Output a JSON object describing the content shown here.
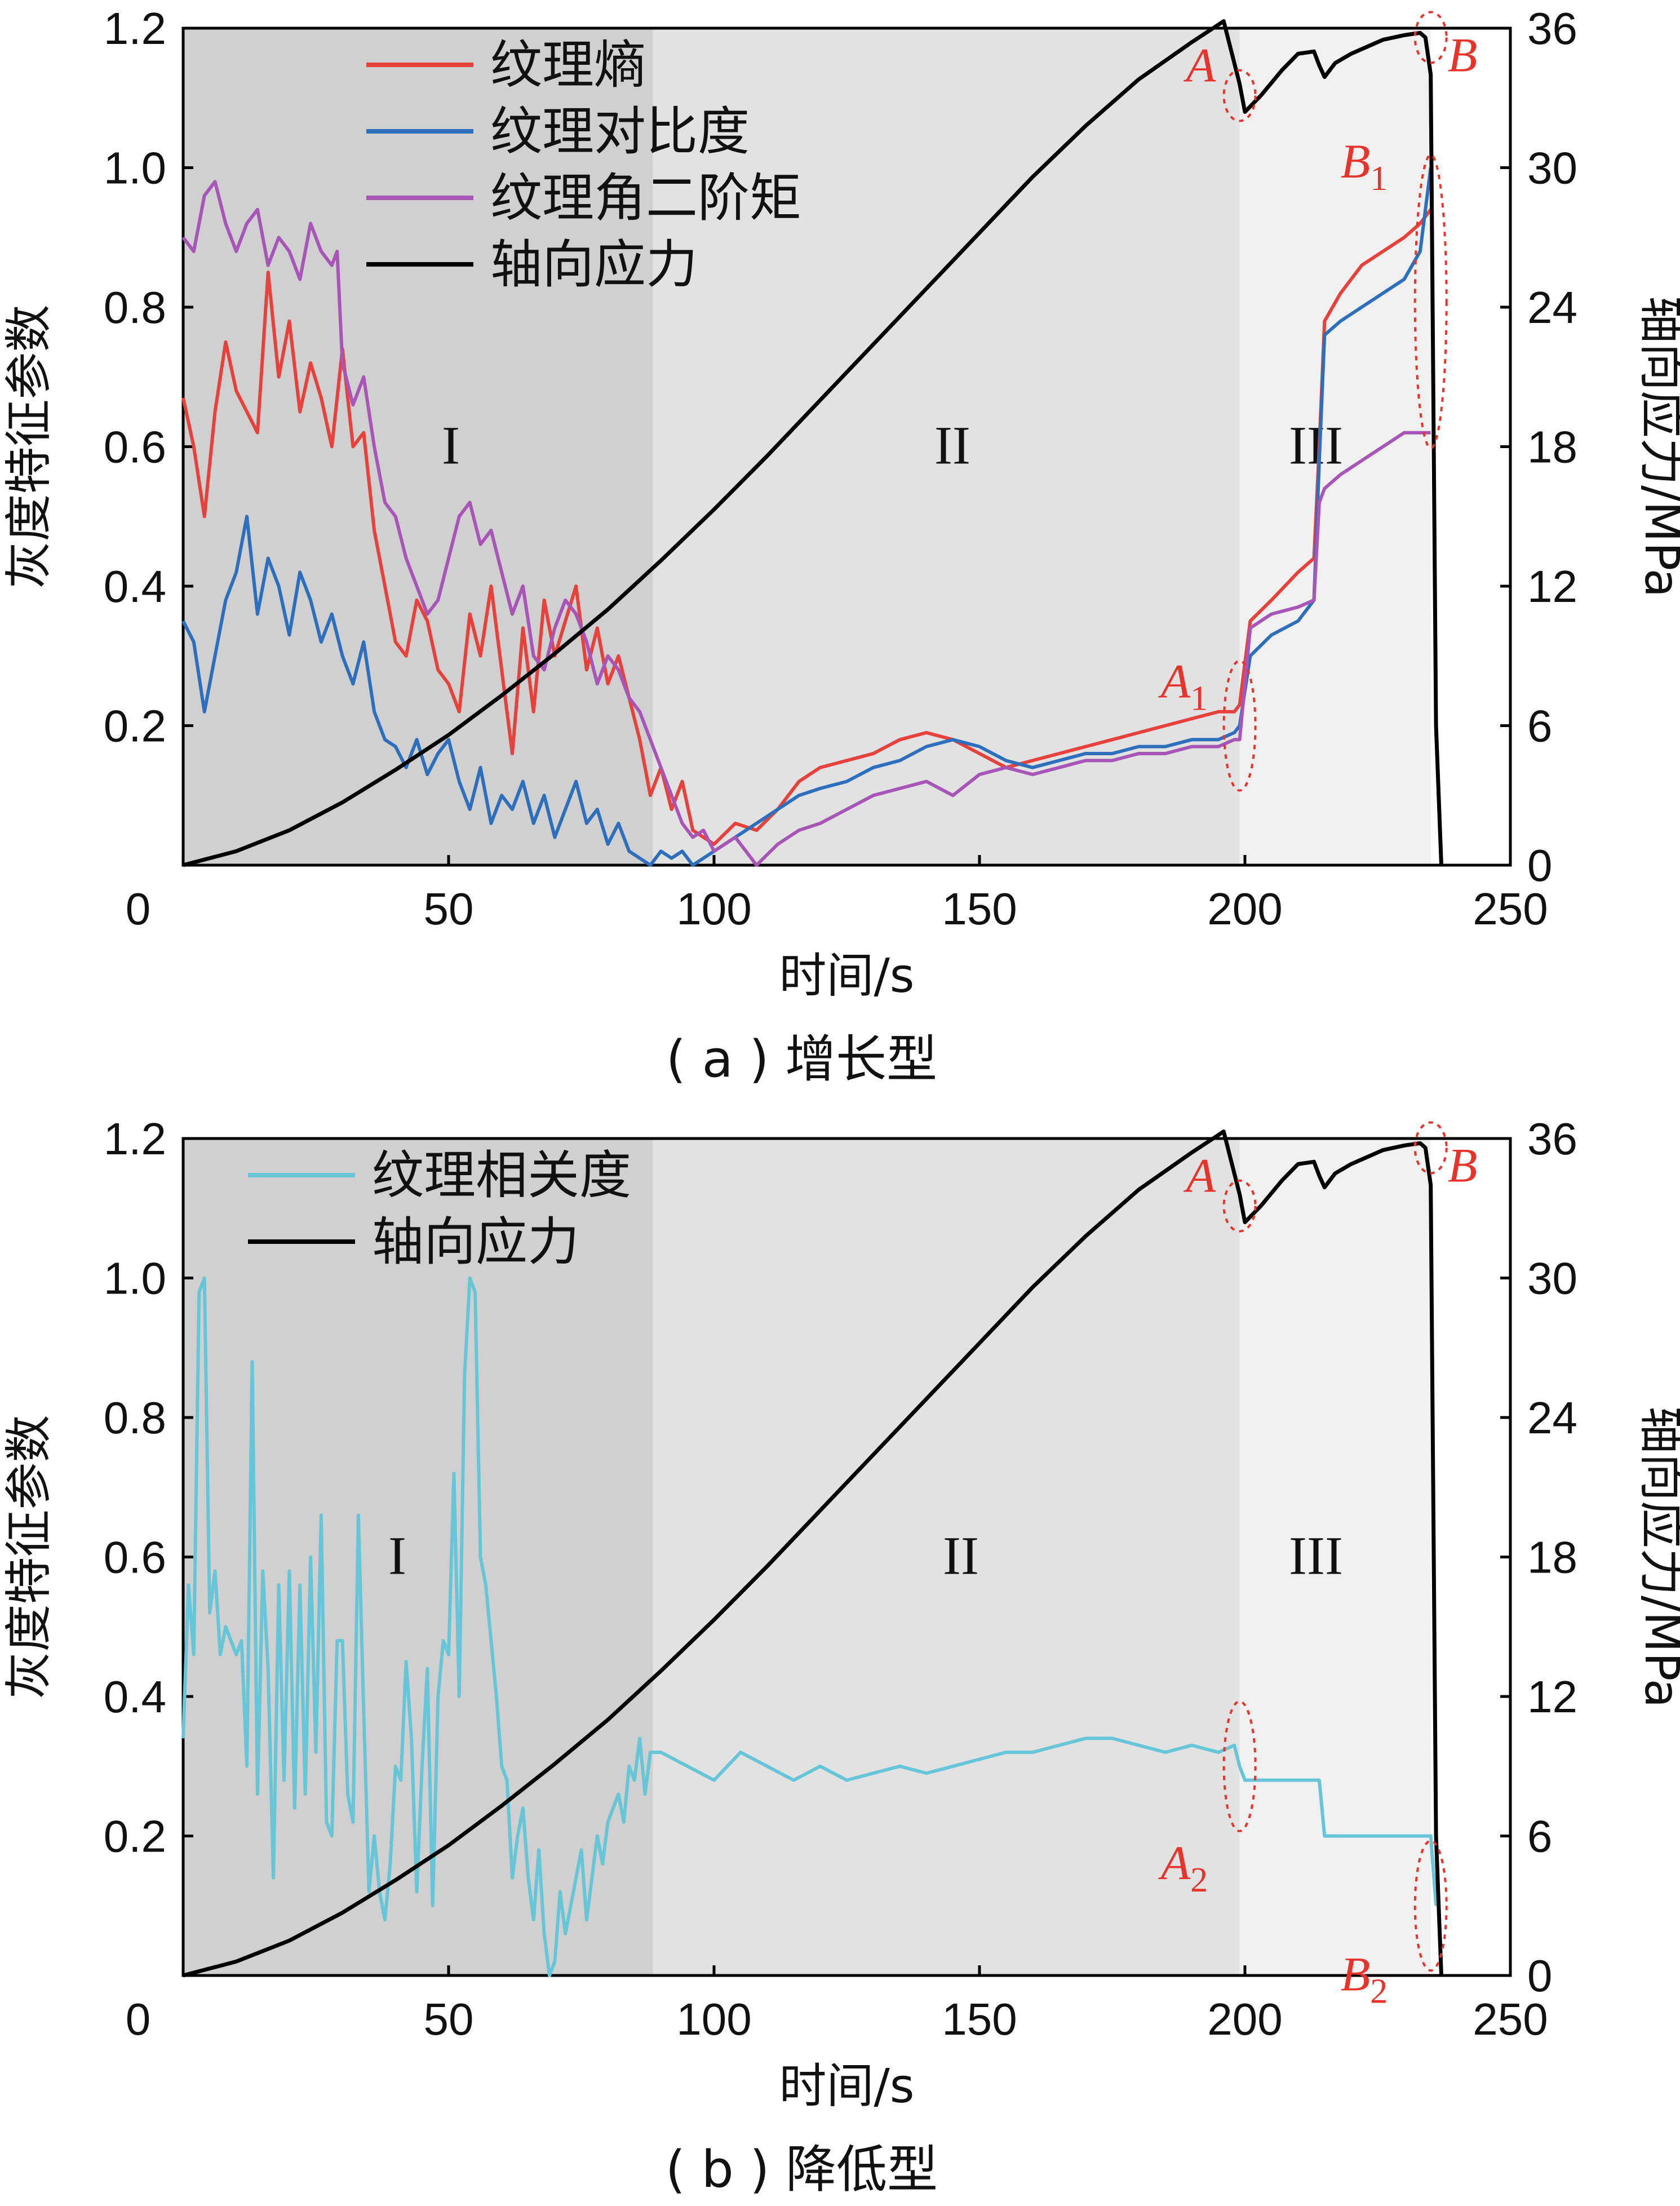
{
  "colors": {
    "entropy": "#e8403a",
    "contrast": "#2e6fbd",
    "asm": "#a855b8",
    "stress": "#000000",
    "correlation": "#66c6d8",
    "annotation": "#e8332a",
    "stage1_bg": "#d0d0d0",
    "stage2_bg": "#e2e2e2",
    "stage3_bg": "#f0f0f0"
  },
  "chart_data": [
    {
      "type": "line",
      "caption": "( a ) 增长型",
      "xlabel": "时间/s",
      "ylabel": "灰度特征参数",
      "y2label": "轴向应力/MPa",
      "xlim": [
        0,
        250
      ],
      "ylim": [
        0,
        1.2
      ],
      "y2lim": [
        0,
        36
      ],
      "xticks": [
        "0",
        "50",
        "100",
        "150",
        "200",
        "250"
      ],
      "yticks": [
        "0.2",
        "0.4",
        "0.6",
        "0.8",
        "1.0",
        "1.2"
      ],
      "y2ticks": [
        "0",
        "6",
        "12",
        "18",
        "24",
        "30",
        "36"
      ],
      "stages": [
        {
          "label": "I",
          "from": 0,
          "to": 88.5
        },
        {
          "label": "II",
          "from": 88.5,
          "to": 199
        },
        {
          "label": "III",
          "from": 199,
          "to": 235
        }
      ],
      "annotations": [
        {
          "text": "A",
          "sub": "",
          "x": 199,
          "y_stress": 33.1
        },
        {
          "text": "B",
          "sub": "",
          "x": 235,
          "y_stress": 35.6
        },
        {
          "text": "A",
          "sub": "1",
          "x": 199,
          "y": 0.2
        },
        {
          "text": "B",
          "sub": "1",
          "x": 235,
          "y": 0.8
        }
      ],
      "series": [
        {
          "name": "纹理熵",
          "key": "entropy",
          "axis": "left",
          "x": [
            0,
            2,
            4,
            6,
            8,
            10,
            12,
            14,
            16,
            18,
            20,
            22,
            24,
            26,
            28,
            30,
            32,
            34,
            36,
            38,
            40,
            42,
            44,
            46,
            48,
            50,
            52,
            54,
            56,
            58,
            60,
            62,
            64,
            66,
            68,
            70,
            72,
            74,
            76,
            78,
            80,
            82,
            84,
            86,
            88,
            90,
            92,
            94,
            96,
            98,
            100,
            104,
            108,
            112,
            116,
            120,
            125,
            130,
            135,
            140,
            145,
            150,
            155,
            160,
            165,
            170,
            175,
            180,
            185,
            190,
            195,
            198,
            199,
            201,
            205,
            210,
            213,
            214,
            215,
            218,
            222,
            226,
            230,
            233,
            235
          ],
          "y": [
            0.67,
            0.6,
            0.5,
            0.65,
            0.75,
            0.68,
            0.65,
            0.62,
            0.85,
            0.7,
            0.78,
            0.65,
            0.72,
            0.67,
            0.6,
            0.74,
            0.6,
            0.62,
            0.48,
            0.4,
            0.32,
            0.3,
            0.38,
            0.35,
            0.28,
            0.26,
            0.22,
            0.36,
            0.3,
            0.4,
            0.28,
            0.16,
            0.34,
            0.22,
            0.38,
            0.3,
            0.35,
            0.4,
            0.28,
            0.34,
            0.26,
            0.3,
            0.24,
            0.18,
            0.1,
            0.14,
            0.08,
            0.12,
            0.05,
            0.04,
            0.03,
            0.06,
            0.05,
            0.08,
            0.12,
            0.14,
            0.15,
            0.16,
            0.18,
            0.19,
            0.18,
            0.16,
            0.14,
            0.15,
            0.16,
            0.17,
            0.18,
            0.19,
            0.2,
            0.21,
            0.22,
            0.22,
            0.23,
            0.35,
            0.38,
            0.42,
            0.44,
            0.6,
            0.78,
            0.82,
            0.86,
            0.88,
            0.9,
            0.92,
            0.94
          ]
        },
        {
          "name": "纹理对比度",
          "key": "contrast",
          "axis": "left",
          "x": [
            0,
            2,
            4,
            6,
            8,
            10,
            12,
            14,
            16,
            18,
            20,
            22,
            24,
            26,
            28,
            30,
            32,
            34,
            36,
            38,
            40,
            42,
            44,
            46,
            48,
            50,
            52,
            54,
            56,
            58,
            60,
            62,
            64,
            66,
            68,
            70,
            72,
            74,
            76,
            78,
            80,
            82,
            84,
            86,
            88,
            90,
            92,
            94,
            96,
            98,
            100,
            104,
            108,
            112,
            116,
            120,
            125,
            130,
            135,
            140,
            145,
            150,
            155,
            160,
            165,
            170,
            175,
            180,
            185,
            190,
            195,
            198,
            199,
            201,
            205,
            210,
            213,
            214,
            215,
            218,
            222,
            226,
            230,
            233,
            235
          ],
          "y": [
            0.35,
            0.32,
            0.22,
            0.3,
            0.38,
            0.42,
            0.5,
            0.36,
            0.44,
            0.4,
            0.33,
            0.42,
            0.38,
            0.32,
            0.36,
            0.3,
            0.26,
            0.32,
            0.22,
            0.18,
            0.17,
            0.14,
            0.18,
            0.13,
            0.16,
            0.18,
            0.12,
            0.08,
            0.14,
            0.06,
            0.1,
            0.08,
            0.12,
            0.06,
            0.1,
            0.04,
            0.08,
            0.12,
            0.06,
            0.08,
            0.03,
            0.06,
            0.02,
            0.01,
            0.0,
            0.02,
            0.01,
            0.02,
            0.0,
            0.01,
            0.02,
            0.04,
            0.06,
            0.08,
            0.1,
            0.11,
            0.12,
            0.14,
            0.15,
            0.17,
            0.18,
            0.17,
            0.15,
            0.14,
            0.15,
            0.16,
            0.16,
            0.17,
            0.17,
            0.18,
            0.18,
            0.19,
            0.2,
            0.3,
            0.33,
            0.35,
            0.38,
            0.58,
            0.76,
            0.78,
            0.8,
            0.82,
            0.84,
            0.88,
            1.0
          ]
        },
        {
          "name": "纹理角二阶矩",
          "key": "asm",
          "axis": "left",
          "x": [
            0,
            2,
            4,
            6,
            8,
            10,
            12,
            14,
            16,
            18,
            20,
            22,
            24,
            26,
            28,
            29,
            30,
            32,
            34,
            36,
            38,
            40,
            42,
            44,
            46,
            48,
            50,
            52,
            54,
            56,
            58,
            60,
            62,
            64,
            66,
            68,
            70,
            72,
            74,
            76,
            78,
            80,
            82,
            84,
            86,
            88,
            90,
            92,
            94,
            96,
            98,
            100,
            104,
            108,
            112,
            116,
            120,
            125,
            130,
            135,
            140,
            145,
            150,
            155,
            160,
            165,
            170,
            175,
            180,
            185,
            190,
            195,
            198,
            199,
            201,
            205,
            210,
            213,
            214,
            215,
            218,
            222,
            226,
            230,
            233,
            235
          ],
          "y": [
            0.9,
            0.88,
            0.96,
            0.98,
            0.92,
            0.88,
            0.92,
            0.94,
            0.86,
            0.9,
            0.88,
            0.84,
            0.92,
            0.88,
            0.86,
            0.88,
            0.72,
            0.66,
            0.7,
            0.6,
            0.52,
            0.5,
            0.44,
            0.4,
            0.36,
            0.38,
            0.44,
            0.5,
            0.52,
            0.46,
            0.48,
            0.42,
            0.36,
            0.4,
            0.3,
            0.28,
            0.34,
            0.38,
            0.36,
            0.32,
            0.26,
            0.3,
            0.28,
            0.24,
            0.22,
            0.18,
            0.14,
            0.1,
            0.06,
            0.04,
            0.05,
            0.02,
            0.04,
            0.0,
            0.03,
            0.05,
            0.06,
            0.08,
            0.1,
            0.11,
            0.12,
            0.1,
            0.13,
            0.14,
            0.13,
            0.14,
            0.15,
            0.15,
            0.16,
            0.16,
            0.17,
            0.17,
            0.18,
            0.18,
            0.34,
            0.36,
            0.37,
            0.38,
            0.52,
            0.54,
            0.56,
            0.58,
            0.6,
            0.62,
            0.62,
            0.62
          ]
        },
        {
          "name": "轴向应力",
          "key": "stress",
          "axis": "right",
          "x": [
            0,
            10,
            20,
            30,
            40,
            50,
            60,
            70,
            80,
            90,
            100,
            110,
            120,
            130,
            140,
            150,
            160,
            170,
            180,
            190,
            196,
            199,
            200,
            203,
            207,
            210,
            213,
            214,
            215,
            217,
            220,
            223,
            226,
            230,
            233,
            234,
            235,
            235.5,
            236,
            237
          ],
          "y": [
            0,
            0.6,
            1.5,
            2.7,
            4.1,
            5.6,
            7.3,
            9.1,
            11.0,
            13.1,
            15.3,
            17.6,
            20.0,
            22.4,
            24.8,
            27.2,
            29.6,
            31.8,
            33.8,
            35.4,
            36.3,
            33.6,
            32.4,
            33.1,
            34.2,
            34.9,
            35.0,
            34.4,
            33.9,
            34.5,
            34.9,
            35.2,
            35.5,
            35.7,
            35.8,
            35.6,
            34.0,
            20.0,
            6.0,
            0.0
          ]
        }
      ]
    },
    {
      "type": "line",
      "caption": "( b ) 降低型",
      "xlabel": "时间/s",
      "ylabel": "灰度特征参数",
      "y2label": "轴向应力/MPa",
      "xlim": [
        0,
        250
      ],
      "ylim": [
        0,
        1.2
      ],
      "y2lim": [
        0,
        36
      ],
      "xticks": [
        "0",
        "50",
        "100",
        "150",
        "200",
        "250"
      ],
      "yticks": [
        "0.2",
        "0.4",
        "0.6",
        "0.8",
        "1.0",
        "1.2"
      ],
      "y2ticks": [
        "0",
        "6",
        "12",
        "18",
        "24",
        "30",
        "36"
      ],
      "stages": [
        {
          "label": "I",
          "from": 0,
          "to": 88.5
        },
        {
          "label": "II",
          "from": 88.5,
          "to": 199
        },
        {
          "label": "III",
          "from": 199,
          "to": 235
        }
      ],
      "annotations": [
        {
          "text": "A",
          "sub": "",
          "x": 199,
          "y_stress": 33.1
        },
        {
          "text": "B",
          "sub": "",
          "x": 235,
          "y_stress": 35.6
        },
        {
          "text": "A",
          "sub": "2",
          "x": 199,
          "y": 0.3
        },
        {
          "text": "B",
          "sub": "2",
          "x": 235,
          "y": 0.1
        }
      ],
      "series": [
        {
          "name": "纹理相关度",
          "key": "correlation",
          "axis": "left",
          "x": [
            0,
            1,
            2,
            3,
            4,
            5,
            6,
            7,
            8,
            9,
            10,
            11,
            12,
            13,
            14,
            15,
            16,
            17,
            18,
            19,
            20,
            21,
            22,
            23,
            24,
            25,
            26,
            27,
            28,
            29,
            30,
            31,
            32,
            33,
            34,
            35,
            36,
            37,
            38,
            39,
            40,
            41,
            42,
            43,
            44,
            45,
            46,
            47,
            48,
            49,
            50,
            51,
            52,
            53,
            54,
            55,
            56,
            57,
            58,
            59,
            60,
            61,
            62,
            63,
            64,
            65,
            66,
            67,
            68,
            69,
            70,
            71,
            72,
            73,
            74,
            75,
            76,
            77,
            78,
            79,
            80,
            81,
            82,
            83,
            84,
            85,
            86,
            87,
            88,
            90,
            95,
            100,
            105,
            110,
            115,
            120,
            125,
            130,
            135,
            140,
            145,
            150,
            155,
            160,
            165,
            170,
            175,
            180,
            185,
            190,
            195,
            198,
            199,
            200,
            205,
            210,
            214,
            215,
            220,
            225,
            230,
            234,
            235,
            236
          ],
          "y": [
            0.34,
            0.56,
            0.46,
            0.98,
            1.0,
            0.52,
            0.58,
            0.46,
            0.5,
            0.48,
            0.46,
            0.48,
            0.3,
            0.88,
            0.26,
            0.58,
            0.44,
            0.14,
            0.56,
            0.28,
            0.58,
            0.24,
            0.56,
            0.26,
            0.6,
            0.32,
            0.66,
            0.22,
            0.2,
            0.48,
            0.48,
            0.26,
            0.22,
            0.66,
            0.38,
            0.12,
            0.2,
            0.12,
            0.08,
            0.16,
            0.3,
            0.28,
            0.45,
            0.34,
            0.12,
            0.3,
            0.44,
            0.1,
            0.4,
            0.48,
            0.46,
            0.72,
            0.4,
            0.86,
            1.0,
            0.98,
            0.6,
            0.56,
            0.48,
            0.4,
            0.3,
            0.28,
            0.14,
            0.2,
            0.24,
            0.14,
            0.08,
            0.18,
            0.06,
            0.0,
            0.02,
            0.12,
            0.06,
            0.1,
            0.14,
            0.18,
            0.08,
            0.14,
            0.2,
            0.16,
            0.22,
            0.24,
            0.26,
            0.22,
            0.3,
            0.28,
            0.34,
            0.26,
            0.32,
            0.32,
            0.3,
            0.28,
            0.32,
            0.3,
            0.28,
            0.3,
            0.28,
            0.29,
            0.3,
            0.29,
            0.3,
            0.31,
            0.32,
            0.32,
            0.33,
            0.34,
            0.34,
            0.33,
            0.32,
            0.33,
            0.32,
            0.33,
            0.3,
            0.28,
            0.28,
            0.28,
            0.28,
            0.2,
            0.2,
            0.2,
            0.2,
            0.2,
            0.2,
            0.1
          ]
        },
        {
          "name": "轴向应力",
          "key": "stress",
          "axis": "right",
          "x": [
            0,
            10,
            20,
            30,
            40,
            50,
            60,
            70,
            80,
            90,
            100,
            110,
            120,
            130,
            140,
            150,
            160,
            170,
            180,
            190,
            196,
            199,
            200,
            203,
            207,
            210,
            213,
            214,
            215,
            217,
            220,
            223,
            226,
            230,
            233,
            234,
            235,
            235.5,
            236,
            237
          ],
          "y": [
            0,
            0.6,
            1.5,
            2.7,
            4.1,
            5.6,
            7.3,
            9.1,
            11.0,
            13.1,
            15.3,
            17.6,
            20.0,
            22.4,
            24.8,
            27.2,
            29.6,
            31.8,
            33.8,
            35.4,
            36.3,
            33.6,
            32.4,
            33.1,
            34.2,
            34.9,
            35.0,
            34.4,
            33.9,
            34.5,
            34.9,
            35.2,
            35.5,
            35.7,
            35.8,
            35.6,
            34.0,
            20.0,
            6.0,
            0.0
          ]
        }
      ]
    }
  ]
}
